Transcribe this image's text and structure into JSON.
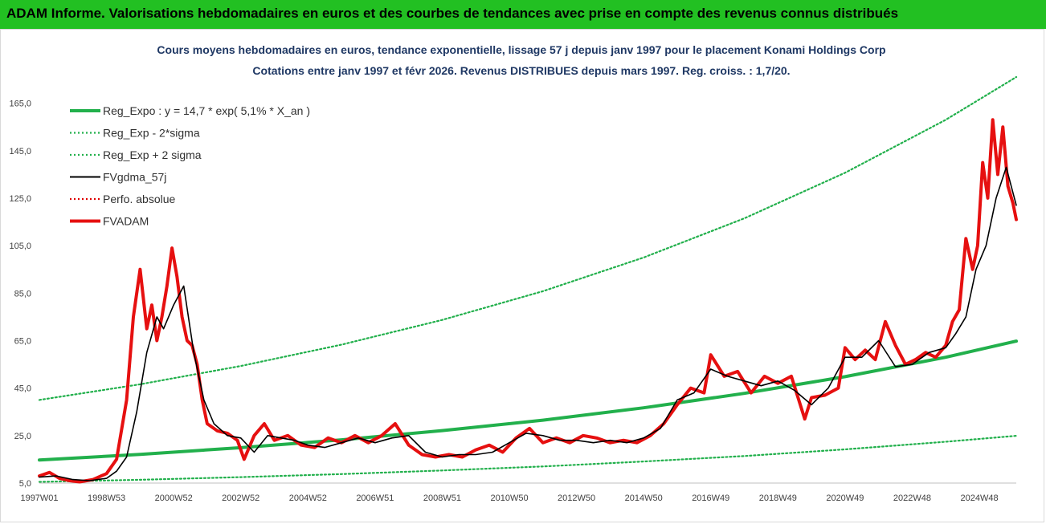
{
  "banner": {
    "title": "ADAM Informe. Valorisations hebdomadaires en euros et des courbes de tendances avec prise en compte des revenus connus distribués",
    "color": "#22c022"
  },
  "chart_data": {
    "type": "line",
    "title": "Cours moyens hebdomadaires en euros, tendance exponentielle, lissage 57 j depuis janv 1997 pour le placement Konami Holdings Corp",
    "subtitle": "Cotations entre janv 1997 et févr 2026. Revenus DISTRIBUES depuis mars 1997. Reg. croiss. : 1,7/20.",
    "xlabel": "",
    "ylabel": "",
    "ylim": [
      5,
      175
    ],
    "x_range": [
      1997.0,
      2026.1
    ],
    "y_ticks": [
      "5,0",
      "25,0",
      "45,0",
      "65,0",
      "85,0",
      "105,0",
      "125,0",
      "145,0",
      "165,0"
    ],
    "y_tick_values": [
      5,
      25,
      45,
      65,
      85,
      105,
      125,
      145,
      165
    ],
    "x_ticks": [
      "1997W01",
      "1998W53",
      "2000W52",
      "2002W52",
      "2004W52",
      "2006W51",
      "2008W51",
      "2010W50",
      "2012W50",
      "2014W50",
      "2016W49",
      "2018W49",
      "2020W49",
      "2022W48",
      "2024W48"
    ],
    "x_tick_values": [
      1997.0,
      1999.0,
      2001.0,
      2003.0,
      2005.0,
      2007.0,
      2009.0,
      2011.0,
      2013.0,
      2015.0,
      2017.0,
      2019.0,
      2021.0,
      2023.0,
      2025.0
    ],
    "grid": false,
    "legend_position": "top-left",
    "legend": [
      {
        "name": "Reg_Expo : y = 14,7 * exp( 5,1% *  X_an )",
        "color": "#22b04c",
        "style": "solid-thick"
      },
      {
        "name": "Reg_Exp - 2*sigma",
        "color": "#22b04c",
        "style": "dotted"
      },
      {
        "name": "Reg_Exp + 2 sigma",
        "color": "#22b04c",
        "style": "dotted"
      },
      {
        "name": "FVgdma_57j",
        "color": "#000000",
        "style": "solid"
      },
      {
        "name": "Perfo. absolue",
        "color": "#e00000",
        "style": "dotted"
      },
      {
        "name": "FVADAM",
        "color": "#e61010",
        "style": "solid-thick"
      }
    ],
    "series": [
      {
        "name": "Reg_Expo : y = 14,7 * exp( 5,1% *  X_an )",
        "color": "#22b04c",
        "x": [
          1997,
          2000,
          2003,
          2006,
          2009,
          2012,
          2015,
          2018,
          2021,
          2024,
          2026.1
        ],
        "values": [
          14.7,
          17.1,
          19.9,
          23.2,
          27.1,
          31.5,
          36.7,
          42.8,
          49.8,
          58.0,
          64.8
        ]
      },
      {
        "name": "Reg_Exp - 2*sigma",
        "color": "#22b04c",
        "x": [
          1997,
          2000,
          2003,
          2006,
          2009,
          2012,
          2015,
          2018,
          2021,
          2024,
          2026.1
        ],
        "values": [
          5.5,
          6.4,
          7.5,
          8.8,
          10.3,
          12.0,
          14.1,
          16.4,
          19.2,
          22.4,
          24.9
        ]
      },
      {
        "name": "Reg_Exp + 2 sigma",
        "color": "#22b04c",
        "x": [
          1997,
          2000,
          2003,
          2006,
          2009,
          2012,
          2015,
          2018,
          2021,
          2024,
          2026.1
        ],
        "values": [
          40.0,
          46.6,
          54.3,
          63.3,
          73.7,
          85.8,
          100.0,
          116.5,
          135.7,
          158.0,
          176.0
        ]
      },
      {
        "name": "FVgdma_57j",
        "color": "#000000",
        "x": [
          1997.0,
          1997.5,
          1998.0,
          1998.5,
          1999.0,
          1999.3,
          1999.6,
          1999.9,
          2000.2,
          2000.5,
          2000.7,
          2001.0,
          2001.3,
          2001.6,
          2001.9,
          2002.2,
          2002.6,
          2003.0,
          2003.4,
          2003.8,
          2004.2,
          2004.6,
          2005.0,
          2005.5,
          2006.0,
          2006.5,
          2007.0,
          2007.5,
          2008.0,
          2008.5,
          2009.0,
          2009.5,
          2010.0,
          2010.5,
          2011.0,
          2011.5,
          2012.0,
          2012.5,
          2013.0,
          2013.5,
          2014.0,
          2014.5,
          2015.0,
          2015.5,
          2016.0,
          2016.5,
          2017.0,
          2017.5,
          2018.0,
          2018.5,
          2019.0,
          2019.5,
          2020.0,
          2020.5,
          2021.0,
          2021.5,
          2022.0,
          2022.5,
          2023.0,
          2023.5,
          2024.0,
          2024.3,
          2024.6,
          2024.9,
          2025.2,
          2025.5,
          2025.8,
          2026.1
        ],
        "values": [
          7.5,
          8.0,
          6.5,
          6.0,
          7.0,
          10.0,
          16.0,
          35.0,
          60.0,
          75.0,
          70.0,
          80.0,
          88.0,
          60.0,
          40.0,
          30.0,
          25.0,
          24.0,
          18.0,
          25.0,
          24.0,
          23.0,
          21.0,
          20.0,
          22.0,
          24.0,
          22.0,
          24.0,
          25.0,
          18.0,
          16.0,
          17.0,
          17.0,
          18.0,
          22.0,
          26.0,
          25.0,
          23.0,
          23.0,
          22.0,
          23.0,
          22.0,
          24.0,
          28.0,
          40.0,
          43.0,
          53.0,
          50.0,
          48.0,
          46.0,
          48.0,
          44.0,
          38.0,
          45.0,
          58.0,
          58.0,
          65.0,
          54.0,
          55.0,
          60.0,
          62.0,
          68.0,
          75.0,
          95.0,
          105.0,
          125.0,
          138.0,
          122.0
        ]
      },
      {
        "name": "FVADAM",
        "color": "#e61010",
        "x": [
          1997.0,
          1997.3,
          1997.6,
          1997.9,
          1998.2,
          1998.6,
          1999.0,
          1999.3,
          1999.6,
          1999.8,
          2000.0,
          2000.2,
          2000.35,
          2000.5,
          2000.65,
          2000.8,
          2000.95,
          2001.1,
          2001.25,
          2001.4,
          2001.55,
          2001.7,
          2001.85,
          2002.0,
          2002.3,
          2002.6,
          2002.9,
          2003.1,
          2003.4,
          2003.7,
          2004.0,
          2004.4,
          2004.8,
          2005.2,
          2005.6,
          2006.0,
          2006.4,
          2006.8,
          2007.2,
          2007.6,
          2008.0,
          2008.4,
          2008.8,
          2009.2,
          2009.6,
          2010.0,
          2010.4,
          2010.8,
          2011.2,
          2011.6,
          2012.0,
          2012.4,
          2012.8,
          2013.2,
          2013.6,
          2014.0,
          2014.4,
          2014.8,
          2015.2,
          2015.6,
          2016.0,
          2016.4,
          2016.8,
          2017.0,
          2017.4,
          2017.8,
          2018.2,
          2018.6,
          2019.0,
          2019.4,
          2019.8,
          2020.0,
          2020.4,
          2020.8,
          2021.0,
          2021.3,
          2021.6,
          2021.9,
          2022.2,
          2022.5,
          2022.8,
          2023.1,
          2023.4,
          2023.7,
          2024.0,
          2024.2,
          2024.4,
          2024.6,
          2024.8,
          2024.95,
          2025.1,
          2025.25,
          2025.4,
          2025.55,
          2025.7,
          2025.85,
          2026.0,
          2026.1
        ],
        "values": [
          8.0,
          9.5,
          7.0,
          6.0,
          5.5,
          6.5,
          9.0,
          15.0,
          40.0,
          75.0,
          95.0,
          70.0,
          80.0,
          65.0,
          75.0,
          88.0,
          104.0,
          92.0,
          75.0,
          65.0,
          63.0,
          55.0,
          40.0,
          30.0,
          27.0,
          26.0,
          23.0,
          15.0,
          25.0,
          30.0,
          23.0,
          25.0,
          21.0,
          20.0,
          24.0,
          22.0,
          25.0,
          22.0,
          25.0,
          30.0,
          21.0,
          17.0,
          16.0,
          17.0,
          16.0,
          19.0,
          21.0,
          18.0,
          24.0,
          28.0,
          22.0,
          24.0,
          22.0,
          25.0,
          24.0,
          22.0,
          23.0,
          22.0,
          25.0,
          30.0,
          38.0,
          45.0,
          43.0,
          59.0,
          50.0,
          52.0,
          43.0,
          50.0,
          47.0,
          50.0,
          32.0,
          41.0,
          42.0,
          45.0,
          62.0,
          57.0,
          61.0,
          57.0,
          73.0,
          63.0,
          55.0,
          57.0,
          60.0,
          58.0,
          63.0,
          73.0,
          78.0,
          108.0,
          95.0,
          105.0,
          140.0,
          125.0,
          158.0,
          135.0,
          155.0,
          130.0,
          123.0,
          116.0
        ]
      }
    ]
  }
}
